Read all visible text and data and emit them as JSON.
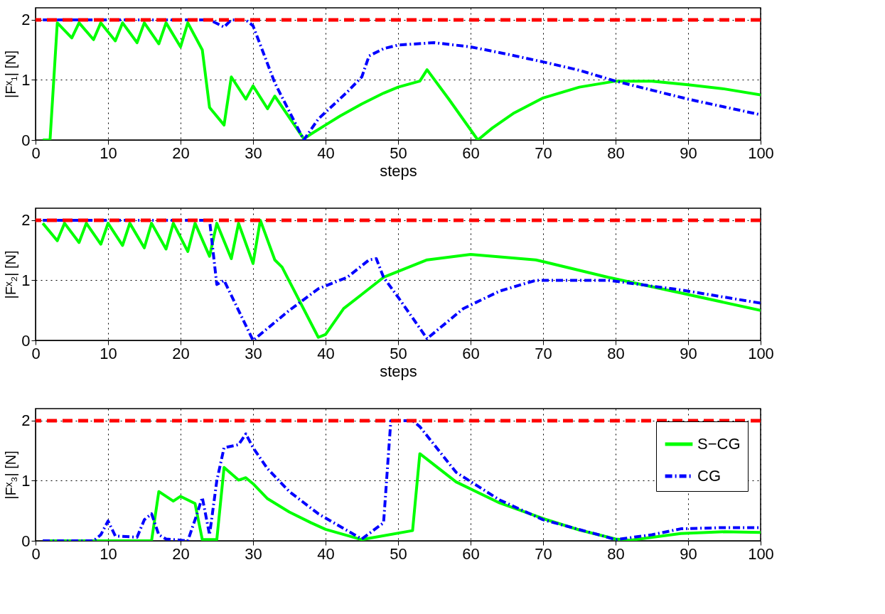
{
  "chart_data": [
    {
      "type": "line",
      "xlabel": "steps",
      "ylabel": "|Fˣ₁| [N]",
      "xlim": [
        0,
        100
      ],
      "xticks": [
        0,
        10,
        20,
        30,
        40,
        50,
        60,
        70,
        80,
        90,
        100
      ],
      "ylim": [
        0,
        2.2
      ],
      "yticks": [
        0,
        1,
        2
      ],
      "grid": true,
      "legend": false,
      "ref_lines": [
        {
          "axis": "y",
          "value": 2,
          "color": "#ff0000",
          "line_style": "dashed"
        }
      ],
      "series": [
        {
          "color": "#00ff00",
          "line_style": "solid",
          "x": [
            1,
            2,
            3,
            5,
            6,
            8,
            9,
            11,
            12,
            14,
            15,
            17,
            18,
            20,
            21,
            23,
            24,
            26,
            27,
            29,
            30,
            32,
            33,
            37,
            38,
            40,
            42,
            45,
            48,
            50,
            53,
            54,
            57,
            61,
            63,
            66,
            70,
            75,
            80,
            85,
            90,
            95,
            100
          ],
          "values": [
            0,
            0,
            1.95,
            1.7,
            1.95,
            1.67,
            1.95,
            1.65,
            1.95,
            1.62,
            1.95,
            1.6,
            1.95,
            1.55,
            1.95,
            1.5,
            0.54,
            0.25,
            1.05,
            0.68,
            0.9,
            0.52,
            0.73,
            0.02,
            0.1,
            0.25,
            0.4,
            0.6,
            0.78,
            0.88,
            0.98,
            1.17,
            0.68,
            0,
            0.2,
            0.45,
            0.7,
            0.88,
            0.98,
            0.98,
            0.92,
            0.85,
            0.75
          ]
        },
        {
          "color": "#0000ff",
          "line_style": "dashdot",
          "x": [
            1,
            24,
            26,
            27,
            29,
            30,
            33,
            37,
            39,
            43,
            45,
            46,
            48,
            50,
            55,
            60,
            65,
            70,
            75,
            80,
            85,
            90,
            95,
            100
          ],
          "values": [
            2,
            2,
            1.88,
            2,
            2,
            1.9,
            0.95,
            0,
            0.35,
            0.8,
            1.05,
            1.4,
            1.52,
            1.58,
            1.62,
            1.55,
            1.43,
            1.3,
            1.16,
            0.98,
            0.83,
            0.68,
            0.55,
            0.42
          ]
        }
      ]
    },
    {
      "type": "line",
      "xlabel": "steps",
      "ylabel": "|Fˣ₂| [N]",
      "xlim": [
        0,
        100
      ],
      "xticks": [
        0,
        10,
        20,
        30,
        40,
        50,
        60,
        70,
        80,
        90,
        100
      ],
      "ylim": [
        0,
        2.2
      ],
      "yticks": [
        0,
        1,
        2
      ],
      "grid": true,
      "legend": false,
      "ref_lines": [
        {
          "axis": "y",
          "value": 2,
          "color": "#ff0000",
          "line_style": "dashed"
        }
      ],
      "series": [
        {
          "color": "#00ff00",
          "line_style": "solid",
          "x": [
            1,
            3,
            4,
            6,
            7,
            9,
            10,
            12,
            13,
            15,
            16,
            18,
            19,
            21,
            22,
            24,
            25,
            27,
            28,
            30,
            31,
            33,
            34,
            39,
            40,
            42.5,
            48,
            54,
            60,
            69,
            79,
            89,
            100
          ],
          "values": [
            1.95,
            1.66,
            1.95,
            1.63,
            1.95,
            1.6,
            1.95,
            1.58,
            1.95,
            1.54,
            1.95,
            1.52,
            1.95,
            1.48,
            1.95,
            1.4,
            1.95,
            1.36,
            1.95,
            1.28,
            2.0,
            1.34,
            1.22,
            0.05,
            0.1,
            0.53,
            1.05,
            1.34,
            1.43,
            1.34,
            1.05,
            0.79,
            0.5
          ]
        },
        {
          "color": "#0000ff",
          "line_style": "dashdot",
          "x": [
            1,
            24,
            25,
            26,
            30,
            35,
            39,
            43,
            46,
            47,
            48,
            50,
            54,
            59,
            64,
            69,
            74,
            79,
            89,
            100
          ],
          "values": [
            2,
            2,
            0.93,
            1.0,
            0,
            0.5,
            0.86,
            1.05,
            1.34,
            1.36,
            1.05,
            0.72,
            0.03,
            0.53,
            0.82,
            1.0,
            1.0,
            1.0,
            0.84,
            0.62
          ]
        }
      ]
    },
    {
      "type": "line",
      "ylabel": "|Fˣ₃| [N]",
      "xlim": [
        0,
        100
      ],
      "xticks": [
        0,
        10,
        20,
        30,
        40,
        50,
        60,
        70,
        80,
        90,
        100
      ],
      "ylim": [
        0,
        2.2
      ],
      "yticks": [
        0,
        1,
        2
      ],
      "grid": true,
      "legend": "top right",
      "ref_lines": [
        {
          "axis": "y",
          "value": 2,
          "color": "#ff0000",
          "line_style": "dashed"
        }
      ],
      "series": [
        {
          "name": "S−CG",
          "color": "#00ff00",
          "line_style": "solid",
          "x": [
            1,
            16,
            17,
            19,
            20,
            22,
            23,
            25,
            26,
            28,
            29,
            30,
            32,
            35,
            38,
            40,
            45,
            52,
            53,
            58,
            64,
            70,
            75,
            80,
            82,
            89,
            95,
            100
          ],
          "values": [
            0,
            0,
            0.82,
            0.66,
            0.74,
            0.62,
            0.02,
            0.02,
            1.22,
            1.01,
            1.05,
            0.95,
            0.7,
            0.48,
            0.3,
            0.19,
            0.02,
            0.17,
            1.45,
            0.98,
            0.63,
            0.37,
            0.18,
            0.03,
            0.01,
            0.12,
            0.15,
            0.14
          ]
        },
        {
          "name": "CG",
          "color": "#0000ff",
          "line_style": "dashdot",
          "x": [
            1,
            8,
            9,
            10,
            11,
            14,
            15,
            16,
            17,
            18,
            21,
            22,
            23,
            24,
            25,
            26,
            28,
            29,
            30,
            32,
            35,
            39,
            45,
            48,
            49,
            52,
            53,
            58,
            64,
            70,
            78,
            80,
            85,
            89,
            95,
            100
          ],
          "values": [
            0,
            0,
            0.1,
            0.33,
            0.08,
            0.06,
            0.35,
            0.45,
            0.1,
            0.03,
            0,
            0.35,
            0.72,
            0.1,
            1.0,
            1.55,
            1.6,
            1.78,
            1.55,
            1.2,
            0.82,
            0.45,
            0.03,
            0.3,
            2.0,
            2.0,
            1.9,
            1.14,
            0.68,
            0.35,
            0.09,
            0.02,
            0.1,
            0.2,
            0.22,
            0.22
          ]
        }
      ]
    }
  ]
}
